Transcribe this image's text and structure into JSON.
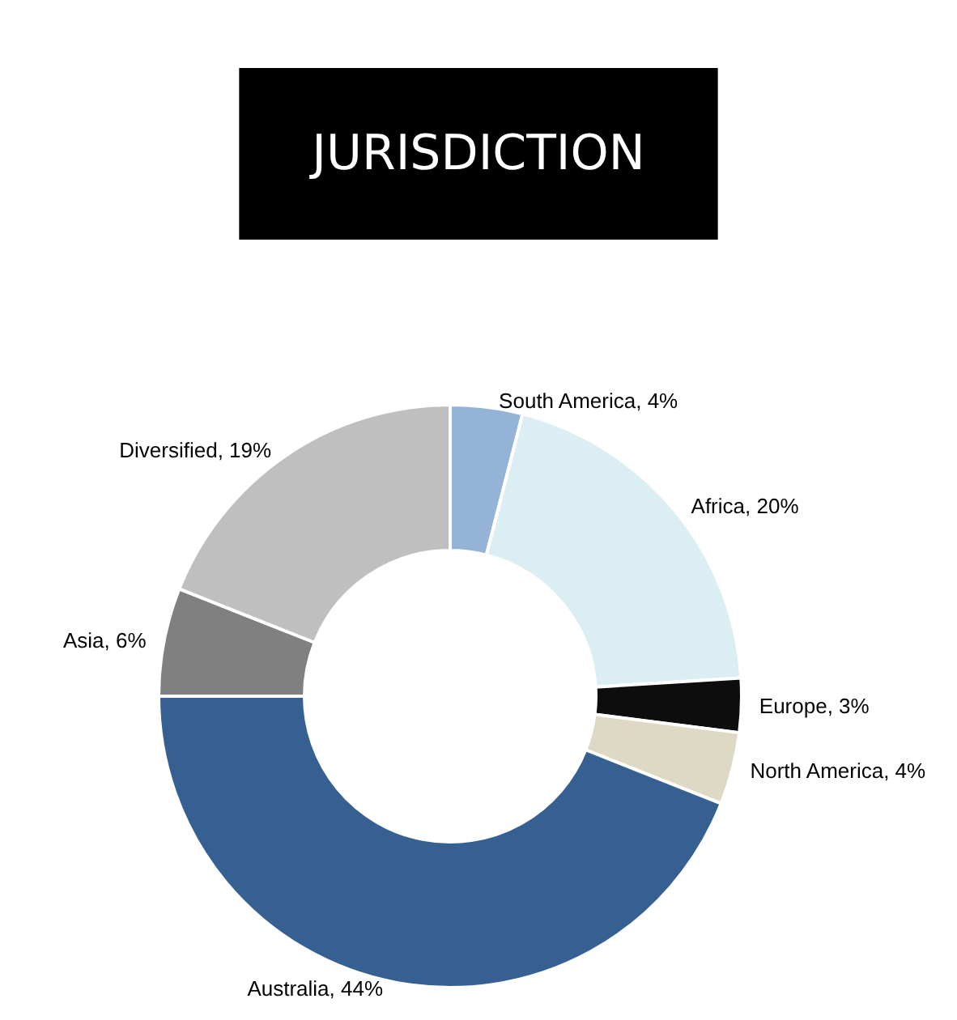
{
  "chart_data": {
    "type": "donut",
    "title": "JURISDICTION",
    "categories": [
      "South America",
      "Africa",
      "Europe",
      "North America",
      "Australia",
      "Asia",
      "Diversified"
    ],
    "values": [
      4,
      20,
      3,
      4,
      44,
      6,
      19
    ],
    "value_labels": [
      "4%",
      "20%",
      "3%",
      "4%",
      "44%",
      "6%",
      "19%"
    ],
    "colors": [
      "#95b3d7",
      "#dbeef3",
      "#0d0d0d",
      "#ddd9c4",
      "#366092",
      "#808080",
      "#bfbfbf"
    ],
    "legend": false
  }
}
